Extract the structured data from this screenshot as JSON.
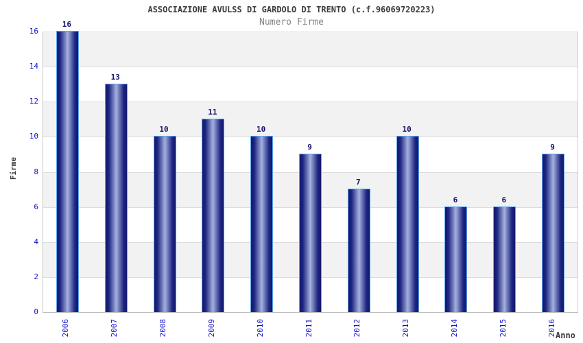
{
  "chart_data": {
    "type": "bar",
    "title": "ASSOCIAZIONE AVULSS DI GARDOLO DI TRENTO (c.f.96069720223)",
    "subtitle": "Numero Firme",
    "categories": [
      "2006",
      "2007",
      "2008",
      "2009",
      "2010",
      "2011",
      "2012",
      "2013",
      "2014",
      "2015",
      "2016"
    ],
    "values": [
      16,
      13,
      10,
      11,
      10,
      9,
      7,
      10,
      6,
      6,
      9
    ],
    "xlabel": "Anno",
    "ylabel": "Firme",
    "ylim": [
      0,
      16
    ],
    "ytick_step": 2,
    "yticks": [
      0,
      2,
      4,
      6,
      8,
      10,
      12,
      14,
      16
    ],
    "grid": true,
    "legend": null,
    "colors": {
      "bar_edge_dark": "#10186f",
      "bar_center_light": "#a9b2df",
      "bar_border": "#5fa8f0",
      "band_gray": "#f2f2f2",
      "band_white": "#ffffff",
      "gridline": "#dcdcdc",
      "axis_frame": "#c9c9c9",
      "tick_label_blue": "#1111cc",
      "value_label_navy": "#14146e",
      "title_gray": "#3c3c3c",
      "subtitle_gray": "#848484"
    }
  }
}
